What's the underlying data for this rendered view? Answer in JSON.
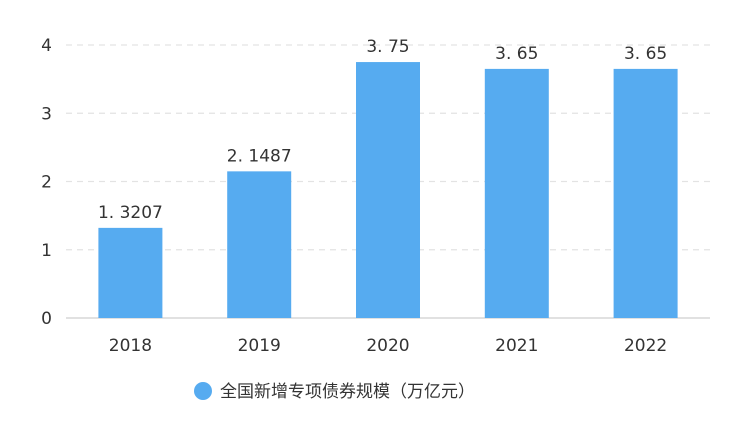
{
  "chart_data": {
    "type": "bar",
    "categories": [
      "2018",
      "2019",
      "2020",
      "2021",
      "2022"
    ],
    "series": [
      {
        "name": "全国新增专项债券规模（万亿元）",
        "values": [
          1.3207,
          2.1487,
          3.75,
          3.65,
          3.65
        ],
        "data_labels": [
          "1. 3207",
          "2. 1487",
          "3. 75",
          "3. 65",
          "3. 65"
        ],
        "color": "#56ABF0"
      }
    ],
    "ylim": [
      0,
      4
    ],
    "yticks": [
      0,
      1,
      2,
      3,
      4
    ],
    "grid": true,
    "legend": "bottom-center"
  }
}
